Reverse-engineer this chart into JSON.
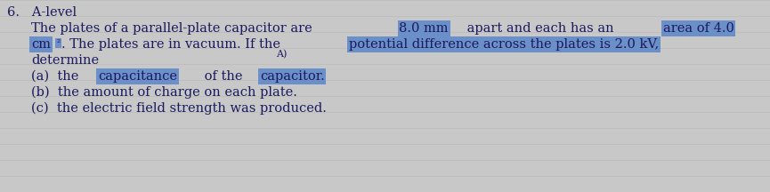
{
  "background_color": "#c8c8c8",
  "line_color": "#b8b8b8",
  "highlight_color": "#6b8fc9",
  "text_color": "#1a1a5e",
  "font_size": 10.5,
  "title_line": "6.   A-level",
  "para_line1": "The plates of a parallel-plate capacitor are 8.0 mm apart and each has an area of 4.0",
  "para_line2": "cm². The plates are in vacuum. If the potential difference across the plates is 2.0 kV,",
  "line3": "determine",
  "note": "A)",
  "line4a": "(a)  the ",
  "line4b": "capacitance",
  "line4c": " of the ",
  "line4d": "capacitor.",
  "line5": "(b)  the amount of charge on each plate.",
  "line6": "(c)  the electric field strength was produced.",
  "hl_8mm": "8.0 mm",
  "hl_area": "area of 4.0",
  "hl_cm2": "cm²",
  "hl_potential": "potential difference across the plates is 2.0 kV,"
}
